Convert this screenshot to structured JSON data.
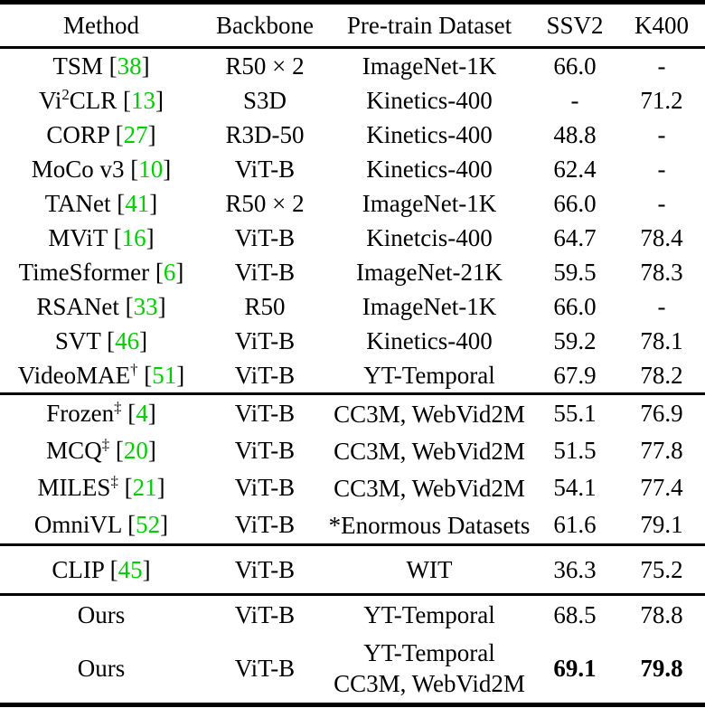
{
  "table": {
    "citation_color": "#00CE00",
    "columns": [
      "Method",
      "Backbone",
      "Pre-train Dataset",
      "SSV2",
      "K400"
    ],
    "groups": [
      {
        "rows": [
          {
            "method": [
              [
                "TSM",
                false
              ]
            ],
            "cite": "38",
            "backbone": "R50 × 2",
            "dataset": [
              "ImageNet-1K"
            ],
            "ssv2": "66.0",
            "k400": "-",
            "bold": false
          },
          {
            "method": [
              [
                "Vi",
                false
              ],
              [
                "2",
                true
              ],
              [
                "CLR",
                false
              ]
            ],
            "cite": "13",
            "backbone": "S3D",
            "dataset": [
              "Kinetics-400"
            ],
            "ssv2": "-",
            "k400": "71.2",
            "bold": false
          },
          {
            "method": [
              [
                "CORP",
                false
              ]
            ],
            "cite": "27",
            "backbone": "R3D-50",
            "dataset": [
              "Kinetics-400"
            ],
            "ssv2": "48.8",
            "k400": "-",
            "bold": false
          },
          {
            "method": [
              [
                "MoCo v3",
                false
              ]
            ],
            "cite": "10",
            "backbone": "ViT-B",
            "dataset": [
              "Kinetics-400"
            ],
            "ssv2": "62.4",
            "k400": "-",
            "bold": false
          },
          {
            "method": [
              [
                "TANet",
                false
              ]
            ],
            "cite": "41",
            "backbone": "R50 × 2",
            "dataset": [
              "ImageNet-1K"
            ],
            "ssv2": "66.0",
            "k400": "-",
            "bold": false
          },
          {
            "method": [
              [
                "MViT",
                false
              ]
            ],
            "cite": "16",
            "backbone": "ViT-B",
            "dataset": [
              "Kinetcis-400"
            ],
            "ssv2": "64.7",
            "k400": "78.4",
            "bold": false
          },
          {
            "method": [
              [
                "TimeSformer",
                false
              ]
            ],
            "cite": "6",
            "backbone": "ViT-B",
            "dataset": [
              "ImageNet-21K"
            ],
            "ssv2": "59.5",
            "k400": "78.3",
            "bold": false
          },
          {
            "method": [
              [
                "RSANet",
                false
              ]
            ],
            "cite": "33",
            "backbone": "R50",
            "dataset": [
              "ImageNet-1K"
            ],
            "ssv2": "66.0",
            "k400": "-",
            "bold": false
          },
          {
            "method": [
              [
                "SVT",
                false
              ]
            ],
            "cite": "46",
            "backbone": "ViT-B",
            "dataset": [
              "Kinetics-400"
            ],
            "ssv2": "59.2",
            "k400": "78.1",
            "bold": false
          },
          {
            "method": [
              [
                "VideoMAE",
                false
              ],
              [
                "†",
                true
              ]
            ],
            "cite": "51",
            "backbone": "ViT-B",
            "dataset": [
              "YT-Temporal"
            ],
            "ssv2": "67.9",
            "k400": "78.2",
            "bold": false
          }
        ]
      },
      {
        "rows": [
          {
            "method": [
              [
                "Frozen",
                false
              ],
              [
                "‡",
                true
              ]
            ],
            "cite": "4",
            "backbone": "ViT-B",
            "dataset": [
              "CC3M, WebVid2M"
            ],
            "ssv2": "55.1",
            "k400": "76.9",
            "bold": false
          },
          {
            "method": [
              [
                "MCQ",
                false
              ],
              [
                "‡",
                true
              ]
            ],
            "cite": "20",
            "backbone": "ViT-B",
            "dataset": [
              "CC3M, WebVid2M"
            ],
            "ssv2": "51.5",
            "k400": "77.8",
            "bold": false
          },
          {
            "method": [
              [
                "MILES",
                false
              ],
              [
                "‡",
                true
              ]
            ],
            "cite": "21",
            "backbone": "ViT-B",
            "dataset": [
              "CC3M, WebVid2M"
            ],
            "ssv2": "54.1",
            "k400": "77.4",
            "bold": false
          },
          {
            "method": [
              [
                "OmniVL",
                false
              ]
            ],
            "cite": "52",
            "backbone": "ViT-B",
            "dataset": [
              "*Enormous Datasets"
            ],
            "ssv2": "61.6",
            "k400": "79.1",
            "bold": false
          }
        ]
      },
      {
        "rows": [
          {
            "method": [
              [
                "CLIP",
                false
              ]
            ],
            "cite": "45",
            "backbone": "ViT-B",
            "dataset": [
              "WIT"
            ],
            "ssv2": "36.3",
            "k400": "75.2",
            "bold": false
          }
        ]
      },
      {
        "rows": [
          {
            "method": [
              [
                "Ours",
                false
              ]
            ],
            "cite": null,
            "backbone": "ViT-B",
            "dataset": [
              "YT-Temporal"
            ],
            "ssv2": "68.5",
            "k400": "78.8",
            "bold": false
          },
          {
            "method": [
              [
                "Ours",
                false
              ]
            ],
            "cite": null,
            "backbone": "ViT-B",
            "dataset": [
              "YT-Temporal",
              "CC3M, WebVid2M"
            ],
            "ssv2": "69.1",
            "k400": "79.8",
            "bold": true
          }
        ]
      }
    ]
  }
}
